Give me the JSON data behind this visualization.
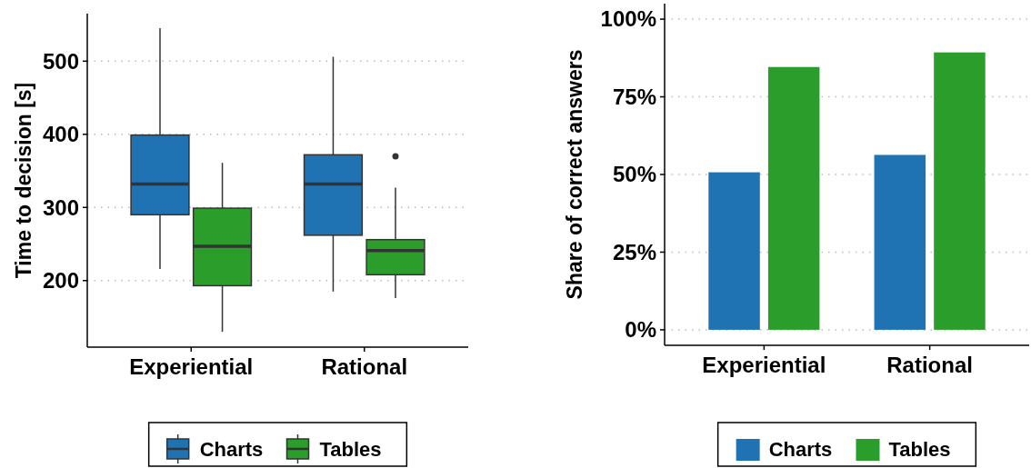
{
  "chart_data": [
    {
      "type": "box",
      "ylabel": "Time to decision [s]",
      "categories": [
        "Experiential",
        "Rational"
      ],
      "series": [
        {
          "name": "Charts",
          "color": "#1f73b3",
          "boxes": [
            {
              "low": 216,
              "q1": 290,
              "median": 332,
              "q3": 399,
              "high": 545
            },
            {
              "low": 185,
              "q1": 262,
              "median": 332,
              "q3": 372,
              "high": 506
            }
          ]
        },
        {
          "name": "Tables",
          "color": "#2a9d2a",
          "boxes": [
            {
              "low": 130,
              "q1": 193,
              "median": 247,
              "q3": 299,
              "high": 361
            },
            {
              "low": 176,
              "q1": 208,
              "median": 241,
              "q3": 256,
              "high": 327,
              "outliers": [
                370
              ]
            }
          ]
        }
      ],
      "ylim": [
        109,
        565
      ],
      "yticks": [
        200,
        300,
        400,
        500
      ],
      "grid": "y",
      "legend": "bottom"
    },
    {
      "type": "bar",
      "ylabel": "Share of correct answers",
      "categories": [
        "Experiential",
        "Rational"
      ],
      "series": [
        {
          "name": "Charts",
          "color": "#1f73b3",
          "values": [
            50.7,
            56.3
          ]
        },
        {
          "name": "Tables",
          "color": "#2a9d2a",
          "values": [
            84.6,
            89.3
          ]
        }
      ],
      "ylim": [
        -5,
        105
      ],
      "yticks": [
        {
          "value": 0,
          "label": "0%"
        },
        {
          "value": 25,
          "label": "25%"
        },
        {
          "value": 50,
          "label": "50%"
        },
        {
          "value": 75,
          "label": "75%"
        },
        {
          "value": 100,
          "label": "100%"
        }
      ],
      "grid": "y",
      "legend": "bottom"
    }
  ]
}
